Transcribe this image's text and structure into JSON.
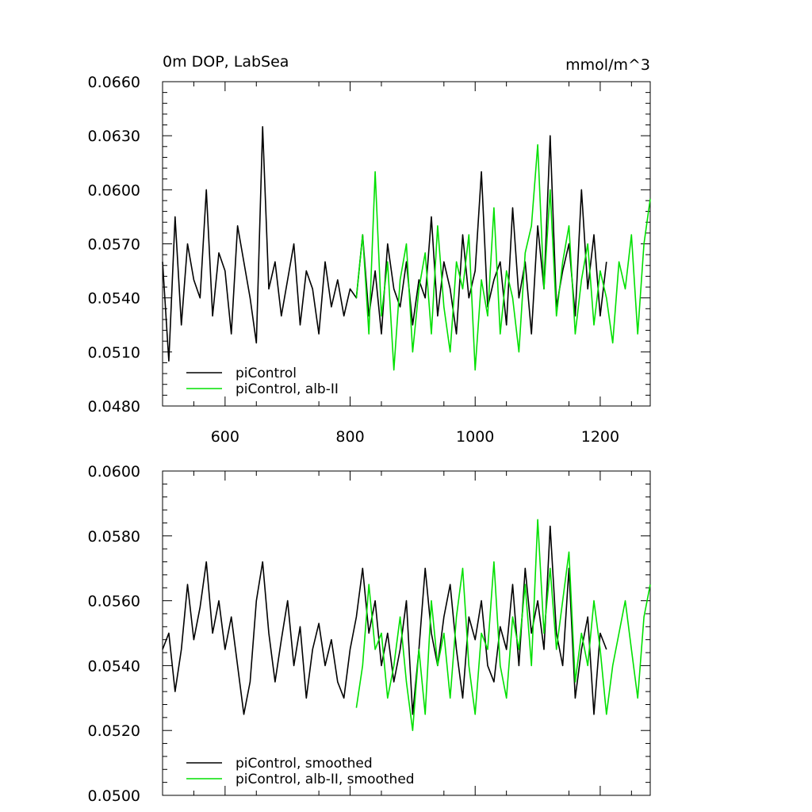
{
  "chart_data": [
    {
      "type": "line",
      "title": "0m DOP, LabSea",
      "units": "mmol/m^3",
      "xlim": [
        500,
        1280
      ],
      "ylim": [
        0.048,
        0.066
      ],
      "x_ticks": [
        600,
        800,
        1000,
        1200
      ],
      "x_tick_labels": [
        "600",
        "800",
        "1000",
        "1200"
      ],
      "y_ticks": [
        0.048,
        0.051,
        0.054,
        0.057,
        0.06,
        0.063,
        0.066
      ],
      "y_tick_labels": [
        "0.0480",
        "0.0510",
        "0.0540",
        "0.0570",
        "0.0600",
        "0.0630",
        "0.0660"
      ],
      "grid": false,
      "legend_position": "bottom-left",
      "series": [
        {
          "name": "piControl",
          "color": "#000000",
          "x": [
            500,
            510,
            520,
            530,
            540,
            550,
            560,
            570,
            580,
            590,
            600,
            610,
            620,
            630,
            640,
            650,
            660,
            670,
            680,
            690,
            700,
            710,
            720,
            730,
            740,
            750,
            760,
            770,
            780,
            790,
            800,
            810,
            820,
            830,
            840,
            850,
            860,
            870,
            880,
            890,
            900,
            910,
            920,
            930,
            940,
            950,
            960,
            970,
            980,
            990,
            1000,
            1010,
            1020,
            1030,
            1040,
            1050,
            1060,
            1070,
            1080,
            1090,
            1100,
            1110,
            1120,
            1130,
            1140,
            1150,
            1160,
            1170,
            1180,
            1190,
            1200,
            1210
          ],
          "values": [
            0.056,
            0.0505,
            0.0585,
            0.0525,
            0.057,
            0.055,
            0.054,
            0.06,
            0.053,
            0.0565,
            0.0555,
            0.052,
            0.058,
            0.056,
            0.054,
            0.0515,
            0.0635,
            0.0545,
            0.056,
            0.053,
            0.055,
            0.057,
            0.0525,
            0.0555,
            0.0545,
            0.052,
            0.056,
            0.0535,
            0.055,
            0.053,
            0.0545,
            0.054,
            0.0575,
            0.053,
            0.0555,
            0.052,
            0.057,
            0.0545,
            0.0535,
            0.056,
            0.0525,
            0.055,
            0.054,
            0.0585,
            0.053,
            0.056,
            0.0545,
            0.052,
            0.0575,
            0.054,
            0.0555,
            0.061,
            0.0535,
            0.055,
            0.056,
            0.0525,
            0.059,
            0.054,
            0.056,
            0.052,
            0.058,
            0.0545,
            0.063,
            0.0535,
            0.0555,
            0.057,
            0.053,
            0.06,
            0.0545,
            0.0575,
            0.053,
            0.056
          ]
        },
        {
          "name": "piControl, alb-II",
          "color": "#00e000",
          "x": [
            810,
            820,
            830,
            840,
            850,
            860,
            870,
            880,
            890,
            900,
            910,
            920,
            930,
            940,
            950,
            960,
            970,
            980,
            990,
            1000,
            1010,
            1020,
            1030,
            1040,
            1050,
            1060,
            1070,
            1080,
            1090,
            1100,
            1110,
            1120,
            1130,
            1140,
            1150,
            1160,
            1170,
            1180,
            1190,
            1200,
            1210,
            1220,
            1230,
            1240,
            1250,
            1260,
            1270,
            1280
          ],
          "values": [
            0.054,
            0.0575,
            0.052,
            0.061,
            0.053,
            0.056,
            0.05,
            0.055,
            0.057,
            0.051,
            0.0545,
            0.0565,
            0.052,
            0.058,
            0.0535,
            0.051,
            0.056,
            0.0545,
            0.0575,
            0.05,
            0.055,
            0.053,
            0.059,
            0.052,
            0.0555,
            0.054,
            0.051,
            0.0565,
            0.058,
            0.0625,
            0.0545,
            0.06,
            0.053,
            0.056,
            0.058,
            0.052,
            0.055,
            0.057,
            0.0525,
            0.0555,
            0.054,
            0.0515,
            0.056,
            0.0545,
            0.0575,
            0.052,
            0.057,
            0.0595
          ]
        }
      ]
    },
    {
      "type": "line",
      "xlim": [
        500,
        1280
      ],
      "ylim": [
        0.05,
        0.06
      ],
      "x_ticks": [
        600,
        800,
        1000,
        1200
      ],
      "y_ticks": [
        0.05,
        0.052,
        0.054,
        0.056,
        0.058,
        0.06
      ],
      "y_tick_labels": [
        "0.0500",
        "0.0520",
        "0.0540",
        "0.0560",
        "0.0580",
        "0.0600"
      ],
      "grid": false,
      "legend_position": "bottom-left",
      "series": [
        {
          "name": "piControl, smoothed",
          "color": "#000000",
          "x": [
            500,
            510,
            520,
            530,
            540,
            550,
            560,
            570,
            580,
            590,
            600,
            610,
            620,
            630,
            640,
            650,
            660,
            670,
            680,
            690,
            700,
            710,
            720,
            730,
            740,
            750,
            760,
            770,
            780,
            790,
            800,
            810,
            820,
            830,
            840,
            850,
            860,
            870,
            880,
            890,
            900,
            910,
            920,
            930,
            940,
            950,
            960,
            970,
            980,
            990,
            1000,
            1010,
            1020,
            1030,
            1040,
            1050,
            1060,
            1070,
            1080,
            1090,
            1100,
            1110,
            1120,
            1130,
            1140,
            1150,
            1160,
            1170,
            1180,
            1190,
            1200,
            1210
          ],
          "values": [
            0.0545,
            0.055,
            0.0532,
            0.0545,
            0.0565,
            0.0548,
            0.0558,
            0.0572,
            0.055,
            0.056,
            0.0545,
            0.0555,
            0.054,
            0.0525,
            0.0535,
            0.056,
            0.0572,
            0.055,
            0.0535,
            0.0548,
            0.056,
            0.054,
            0.0552,
            0.053,
            0.0545,
            0.0553,
            0.054,
            0.0548,
            0.0535,
            0.053,
            0.0545,
            0.0555,
            0.057,
            0.055,
            0.056,
            0.054,
            0.055,
            0.0535,
            0.0545,
            0.056,
            0.0525,
            0.0545,
            0.057,
            0.055,
            0.054,
            0.0555,
            0.0565,
            0.0545,
            0.053,
            0.0555,
            0.0548,
            0.056,
            0.054,
            0.0535,
            0.0552,
            0.0545,
            0.0565,
            0.054,
            0.057,
            0.055,
            0.056,
            0.0545,
            0.0583,
            0.055,
            0.054,
            0.057,
            0.053,
            0.0545,
            0.0555,
            0.0525,
            0.055,
            0.0545
          ]
        },
        {
          "name": "piControl, alb-II, smoothed",
          "color": "#00e000",
          "x": [
            810,
            820,
            830,
            840,
            850,
            860,
            870,
            880,
            890,
            900,
            910,
            920,
            930,
            940,
            950,
            960,
            970,
            980,
            990,
            1000,
            1010,
            1020,
            1030,
            1040,
            1050,
            1060,
            1070,
            1080,
            1090,
            1100,
            1110,
            1120,
            1130,
            1140,
            1150,
            1160,
            1170,
            1180,
            1190,
            1200,
            1210,
            1220,
            1230,
            1240,
            1250,
            1260,
            1270,
            1280
          ],
          "values": [
            0.0527,
            0.054,
            0.0565,
            0.0545,
            0.055,
            0.053,
            0.054,
            0.0555,
            0.0535,
            0.052,
            0.0545,
            0.0525,
            0.056,
            0.054,
            0.055,
            0.053,
            0.0555,
            0.057,
            0.054,
            0.0525,
            0.055,
            0.0545,
            0.0572,
            0.054,
            0.053,
            0.0555,
            0.0545,
            0.0565,
            0.054,
            0.0585,
            0.055,
            0.057,
            0.0545,
            0.056,
            0.0575,
            0.0535,
            0.055,
            0.054,
            0.056,
            0.0545,
            0.0525,
            0.054,
            0.055,
            0.056,
            0.0545,
            0.053,
            0.0555,
            0.0565
          ]
        }
      ]
    }
  ]
}
